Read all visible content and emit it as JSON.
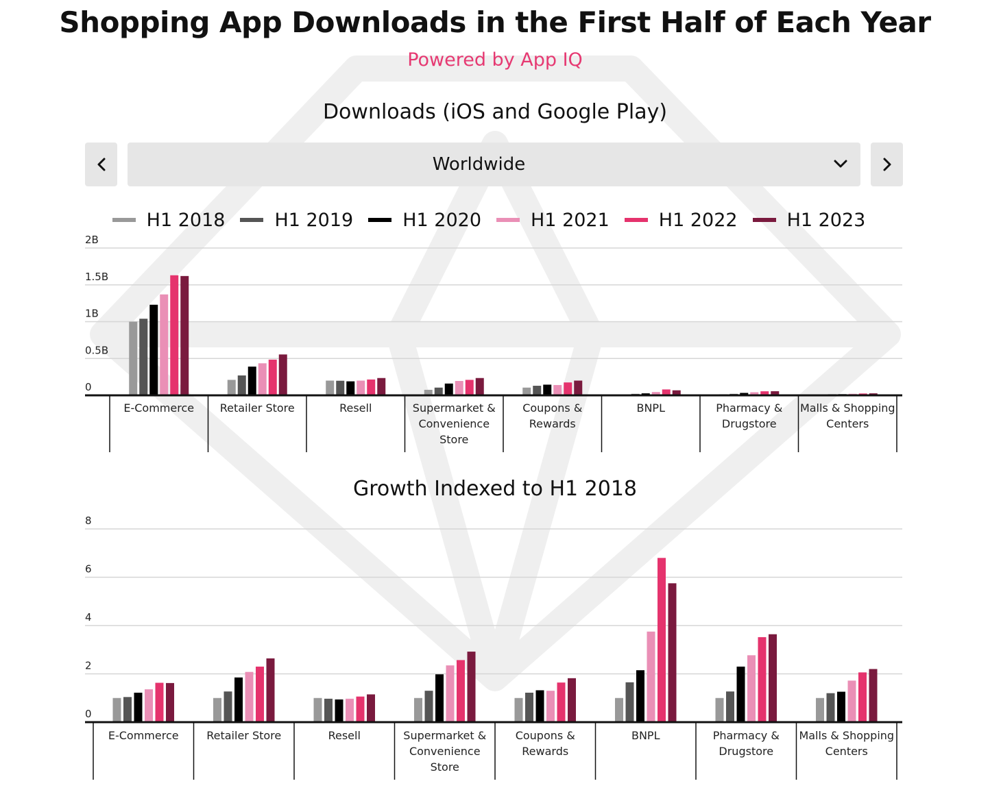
{
  "page": {
    "title": "Shopping App Downloads in the First Half of Each Year",
    "subtitle": "Powered by App IQ"
  },
  "controls": {
    "prev_icon": "chevron-left-icon",
    "next_icon": "chevron-right-icon",
    "dropdown_icon": "chevron-down-icon",
    "region": "Worldwide"
  },
  "legend": [
    {
      "label": "H1 2018",
      "color": "#999999"
    },
    {
      "label": "H1 2019",
      "color": "#555555"
    },
    {
      "label": "H1 2020",
      "color": "#000000"
    },
    {
      "label": "H1 2021",
      "color": "#ea8fb6"
    },
    {
      "label": "H1 2022",
      "color": "#e5336d"
    },
    {
      "label": "H1 2023",
      "color": "#7a1a3e"
    }
  ],
  "chart_data": [
    {
      "type": "bar",
      "title": "Downloads (iOS and Google Play)",
      "categories": [
        "E-Commerce",
        "Retailer Store",
        "Resell",
        "Supermarket & Convenience Store",
        "Coupons & Rewards",
        "BNPL",
        "Pharmacy & Drugstore",
        "Malls & Shopping Centers"
      ],
      "category_lines": [
        [
          "E-Commerce"
        ],
        [
          "Retailer Store"
        ],
        [
          "Resell"
        ],
        [
          "Supermarket &",
          "Convenience",
          "Store"
        ],
        [
          "Coupons &",
          "Rewards"
        ],
        [
          "BNPL"
        ],
        [
          "Pharmacy &",
          "Drugstore"
        ],
        [
          "Malls & Shopping",
          "Centers"
        ]
      ],
      "ylim": [
        0,
        2000000000
      ],
      "yticks": [
        0,
        500000000,
        1000000000,
        1500000000,
        2000000000
      ],
      "ytick_labels": [
        "0",
        "0.5B",
        "1B",
        "1.5B",
        "2B"
      ],
      "grid": true,
      "legend_position": "top",
      "series": [
        {
          "name": "H1 2018",
          "values": [
            1000000000,
            210000000,
            200000000,
            75000000,
            105000000,
            12000000,
            15000000,
            12000000
          ]
        },
        {
          "name": "H1 2019",
          "values": [
            1040000000,
            270000000,
            198000000,
            105000000,
            130000000,
            20000000,
            20000000,
            15000000
          ]
        },
        {
          "name": "H1 2020",
          "values": [
            1230000000,
            390000000,
            190000000,
            160000000,
            145000000,
            27000000,
            33000000,
            16000000
          ]
        },
        {
          "name": "H1 2021",
          "values": [
            1370000000,
            435000000,
            200000000,
            195000000,
            140000000,
            45000000,
            42000000,
            21000000
          ]
        },
        {
          "name": "H1 2022",
          "values": [
            1630000000,
            485000000,
            215000000,
            210000000,
            175000000,
            80000000,
            55000000,
            25000000
          ]
        },
        {
          "name": "H1 2023",
          "values": [
            1620000000,
            555000000,
            235000000,
            235000000,
            200000000,
            68000000,
            56000000,
            27000000
          ]
        }
      ]
    },
    {
      "type": "bar",
      "title": "Growth Indexed to H1 2018",
      "categories": [
        "E-Commerce",
        "Retailer Store",
        "Resell",
        "Supermarket & Convenience Store",
        "Coupons & Rewards",
        "BNPL",
        "Pharmacy & Drugstore",
        "Malls & Shopping Centers"
      ],
      "category_lines": [
        [
          "E-Commerce"
        ],
        [
          "Retailer Store"
        ],
        [
          "Resell"
        ],
        [
          "Supermarket &",
          "Convenience",
          "Store"
        ],
        [
          "Coupons &",
          "Rewards"
        ],
        [
          "BNPL"
        ],
        [
          "Pharmacy &",
          "Drugstore"
        ],
        [
          "Malls & Shopping",
          "Centers"
        ]
      ],
      "ylim": [
        0,
        8
      ],
      "yticks": [
        0,
        2,
        4,
        6,
        8
      ],
      "ytick_labels": [
        "0",
        "2",
        "4",
        "6",
        "8"
      ],
      "grid": true,
      "series": [
        {
          "name": "H1 2018",
          "values": [
            1.0,
            1.0,
            1.0,
            1.0,
            1.0,
            1.0,
            1.0,
            1.0
          ]
        },
        {
          "name": "H1 2019",
          "values": [
            1.04,
            1.27,
            0.97,
            1.3,
            1.22,
            1.65,
            1.27,
            1.2
          ]
        },
        {
          "name": "H1 2020",
          "values": [
            1.22,
            1.85,
            0.94,
            1.98,
            1.32,
            2.15,
            2.3,
            1.26
          ]
        },
        {
          "name": "H1 2021",
          "values": [
            1.36,
            2.08,
            0.97,
            2.35,
            1.3,
            3.75,
            2.77,
            1.72
          ]
        },
        {
          "name": "H1 2022",
          "values": [
            1.63,
            2.3,
            1.06,
            2.57,
            1.64,
            6.8,
            3.52,
            2.06
          ]
        },
        {
          "name": "H1 2023",
          "values": [
            1.62,
            2.64,
            1.15,
            2.92,
            1.82,
            5.75,
            3.64,
            2.2
          ]
        }
      ]
    }
  ]
}
